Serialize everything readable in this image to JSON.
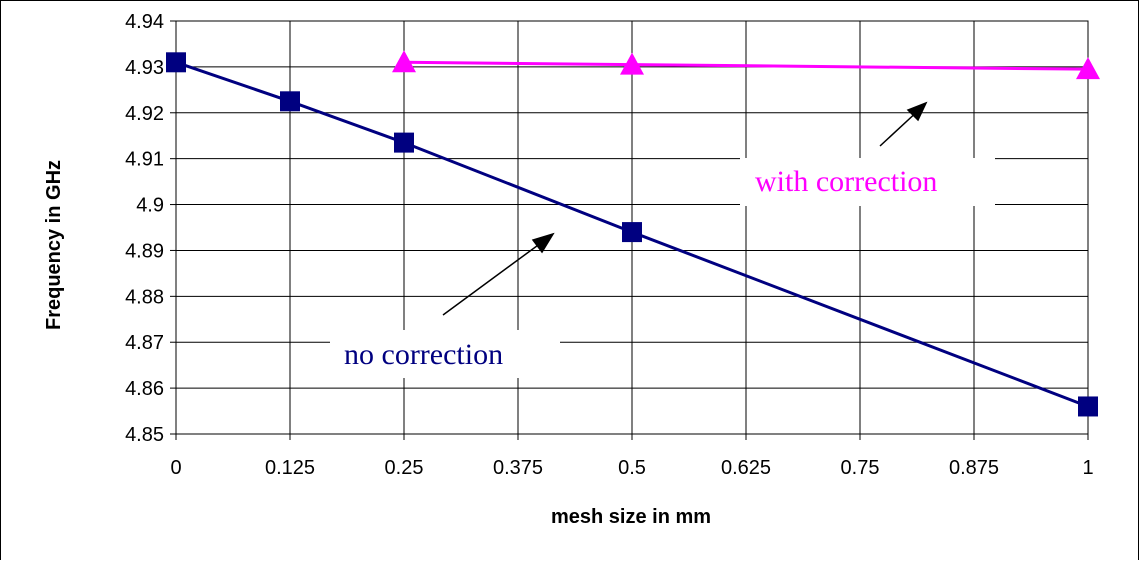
{
  "chart_data": {
    "type": "line",
    "title": "",
    "xlabel": "mesh size in mm",
    "ylabel": "Frequency in GHz",
    "xlim": [
      0,
      1
    ],
    "ylim": [
      4.85,
      4.94
    ],
    "x_ticks": [
      "0",
      "0.125",
      "0.25",
      "0.375",
      "0.5",
      "0.625",
      "0.75",
      "0.875",
      "1"
    ],
    "y_ticks": [
      "4.85",
      "4.86",
      "4.87",
      "4.88",
      "4.89",
      "4.9",
      "4.91",
      "4.92",
      "4.93",
      "4.94"
    ],
    "grid": true,
    "series": [
      {
        "name": "no correction",
        "color": "#000080",
        "marker": "square",
        "x": [
          0,
          0.125,
          0.25,
          0.5,
          1
        ],
        "y": [
          4.931,
          4.9225,
          4.9135,
          4.894,
          4.856
        ]
      },
      {
        "name": "with correction",
        "color": "#ff00ff",
        "marker": "triangle",
        "x": [
          0.25,
          0.5,
          1
        ],
        "y": [
          4.931,
          4.9305,
          4.9295
        ]
      }
    ],
    "annotations": [
      {
        "text": "with correction",
        "color": "#ff00ff",
        "arrow_to_series": "with correction"
      },
      {
        "text": "no correction",
        "color": "#000080",
        "arrow_to_series": "no correction"
      }
    ]
  }
}
